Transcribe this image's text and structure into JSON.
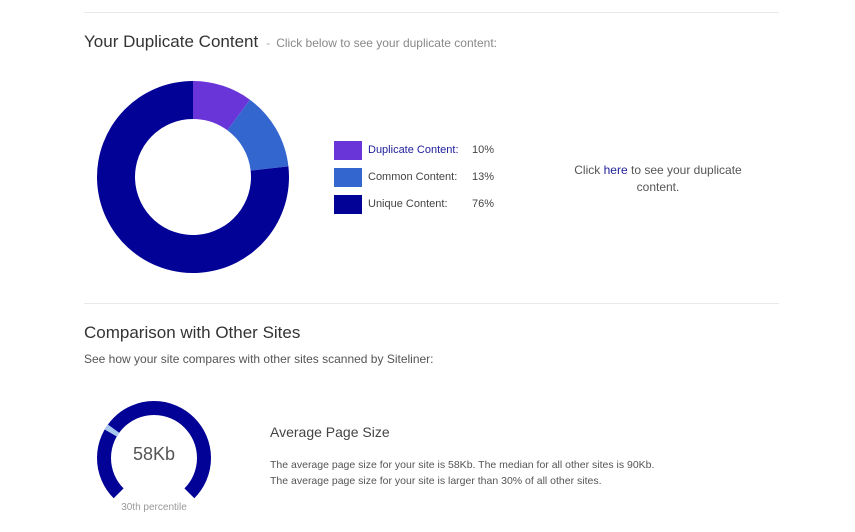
{
  "duplicate_section": {
    "title": "Your Duplicate Content",
    "separator": "-",
    "subtitle": "Click below to see your duplicate content:"
  },
  "chart_data": {
    "type": "pie",
    "categories": [
      "Duplicate Content:",
      "Common Content:",
      "Unique Content:"
    ],
    "values": [
      10,
      13,
      76
    ],
    "value_labels": [
      "10%",
      "13%",
      "76%"
    ],
    "colors": [
      "#6a35d8",
      "#3466d0",
      "#020296"
    ]
  },
  "cta": {
    "prefix": "Click",
    "link_text": "here",
    "suffix": "to see your duplicate content."
  },
  "comparison_section": {
    "title": "Comparison with Other Sites",
    "description": "See how your site compares with other sites scanned by Siteliner:"
  },
  "gauge": {
    "value_label": "58Kb",
    "caption": "30th percentile",
    "percentile": 30,
    "track_color": "#020296",
    "marker_color": "#a7c7ec"
  },
  "metric": {
    "title": "Average Page Size",
    "line1": "The average page size for your site is 58Kb. The median for all other sites is 90Kb.",
    "line2": "The average page size for your site is larger than 30% of all other sites."
  }
}
